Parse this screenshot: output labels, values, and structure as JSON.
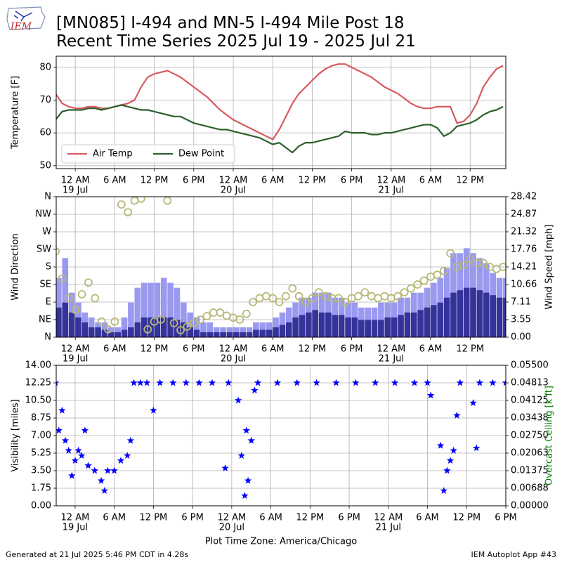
{
  "logo": "IEM",
  "title": [
    "[MN085] I-494 and MN-5 I-494 Mile Post 18",
    "Recent Time Series 2025 Jul 19 - 2025 Jul 21"
  ],
  "footer": {
    "left": "Generated at 21 Jul 2025 5:46 PM CDT in 4.28s",
    "right": "IEM Autoplot App #43"
  },
  "chart_data": [
    {
      "type": "line",
      "ylabel": "Temperature [F]",
      "grid": true,
      "legend": "lower left",
      "xlim": [
        "2025-07-18T21:06",
        "2025-07-21T17:25"
      ],
      "xticks": [
        {
          "value": "2025-07-19T00:00",
          "label": "12 AM",
          "date": "19 Jul"
        },
        {
          "value": "2025-07-19T06:00",
          "label": "6 AM"
        },
        {
          "value": "2025-07-19T12:00",
          "label": "12 PM"
        },
        {
          "value": "2025-07-19T18:00",
          "label": "6 PM"
        },
        {
          "value": "2025-07-20T00:00",
          "label": "12 AM",
          "date": "20 Jul"
        },
        {
          "value": "2025-07-20T06:00",
          "label": "6 AM"
        },
        {
          "value": "2025-07-20T12:00",
          "label": "12 PM"
        },
        {
          "value": "2025-07-20T18:00",
          "label": "6 PM"
        },
        {
          "value": "2025-07-21T00:00",
          "label": "12 AM",
          "date": "21 Jul"
        },
        {
          "value": "2025-07-21T06:00",
          "label": "6 AM"
        },
        {
          "value": "2025-07-21T12:00",
          "label": "12 PM"
        }
      ],
      "ylim": [
        49.1,
        83.4
      ],
      "yticks": [
        50,
        60,
        70,
        80
      ],
      "x": [
        "2025-07-18T21:00",
        "2025-07-18T22:00",
        "2025-07-18T23:00",
        "2025-07-19T00:00",
        "2025-07-19T01:00",
        "2025-07-19T02:00",
        "2025-07-19T03:00",
        "2025-07-19T04:00",
        "2025-07-19T05:00",
        "2025-07-19T06:00",
        "2025-07-19T07:00",
        "2025-07-19T08:00",
        "2025-07-19T09:00",
        "2025-07-19T10:00",
        "2025-07-19T11:00",
        "2025-07-19T12:00",
        "2025-07-19T13:00",
        "2025-07-19T14:00",
        "2025-07-19T15:00",
        "2025-07-19T16:00",
        "2025-07-19T17:00",
        "2025-07-19T18:00",
        "2025-07-19T19:00",
        "2025-07-19T20:00",
        "2025-07-19T21:00",
        "2025-07-19T22:00",
        "2025-07-19T23:00",
        "2025-07-20T00:00",
        "2025-07-20T01:00",
        "2025-07-20T02:00",
        "2025-07-20T03:00",
        "2025-07-20T04:00",
        "2025-07-20T05:00",
        "2025-07-20T06:00",
        "2025-07-20T07:00",
        "2025-07-20T08:00",
        "2025-07-20T09:00",
        "2025-07-20T10:00",
        "2025-07-20T11:00",
        "2025-07-20T12:00",
        "2025-07-20T13:00",
        "2025-07-20T14:00",
        "2025-07-20T15:00",
        "2025-07-20T16:00",
        "2025-07-20T17:00",
        "2025-07-20T18:00",
        "2025-07-20T19:00",
        "2025-07-20T20:00",
        "2025-07-20T21:00",
        "2025-07-20T22:00",
        "2025-07-20T23:00",
        "2025-07-21T00:00",
        "2025-07-21T01:00",
        "2025-07-21T02:00",
        "2025-07-21T03:00",
        "2025-07-21T04:00",
        "2025-07-21T05:00",
        "2025-07-21T06:00",
        "2025-07-21T07:00",
        "2025-07-21T08:00",
        "2025-07-21T09:00",
        "2025-07-21T10:00",
        "2025-07-21T11:00",
        "2025-07-21T12:00",
        "2025-07-21T13:00",
        "2025-07-21T14:00",
        "2025-07-21T15:00",
        "2025-07-21T16:00",
        "2025-07-21T17:00"
      ],
      "series": [
        {
          "name": "Air Temp",
          "color": "#d9595f",
          "values": [
            72,
            69,
            68,
            67.5,
            67.5,
            68,
            68,
            67.5,
            67.5,
            68,
            68.5,
            69,
            70,
            74,
            77,
            78,
            78.5,
            79,
            78,
            77,
            75.5,
            74,
            72.5,
            71,
            69,
            67,
            65.5,
            64,
            63,
            62,
            61,
            60,
            59,
            58,
            61,
            65,
            69,
            72,
            74,
            76,
            78,
            79.5,
            80.5,
            81,
            81,
            80,
            79,
            78,
            77,
            75.5,
            74,
            73,
            72,
            70.5,
            69,
            68,
            67.5,
            67.5,
            68,
            68,
            68,
            63,
            63.5,
            65.5,
            69,
            74,
            77,
            79.5,
            80.5
          ]
        },
        {
          "name": "Dew Point",
          "color": "#2e5f2e",
          "values": [
            64,
            66.5,
            67,
            67,
            67,
            67.5,
            67.5,
            67,
            67.5,
            68,
            68.5,
            68,
            67.5,
            67,
            67,
            66.5,
            66,
            65.5,
            65,
            65,
            64,
            63,
            62.5,
            62,
            61.5,
            61,
            61,
            60.5,
            60,
            59.5,
            59,
            58.5,
            57.5,
            56.5,
            57,
            55.5,
            54,
            56,
            57,
            57,
            57.5,
            58,
            58.5,
            59,
            60.5,
            60,
            60,
            60,
            59.5,
            59.5,
            60,
            60,
            60.5,
            61,
            61.5,
            62,
            62.5,
            62.5,
            61.5,
            59,
            60,
            62,
            62.5,
            63,
            64,
            65.5,
            66.5,
            67,
            68
          ]
        }
      ]
    },
    {
      "type": "wind",
      "ylabel": "Wind Direction",
      "y2label": "Wind Speed [mph]",
      "grid": true,
      "xlim": [
        "2025-07-18T21:06",
        "2025-07-21T17:25"
      ],
      "xticks": [
        {
          "value": "2025-07-19T00:00",
          "label": "12 AM",
          "date": "19 Jul"
        },
        {
          "value": "2025-07-19T06:00",
          "label": "6 AM"
        },
        {
          "value": "2025-07-19T12:00",
          "label": "12 PM"
        },
        {
          "value": "2025-07-19T18:00",
          "label": "6 PM"
        },
        {
          "value": "2025-07-20T00:00",
          "label": "12 AM",
          "date": "20 Jul"
        },
        {
          "value": "2025-07-20T06:00",
          "label": "6 AM"
        },
        {
          "value": "2025-07-20T12:00",
          "label": "12 PM"
        },
        {
          "value": "2025-07-20T18:00",
          "label": "6 PM"
        },
        {
          "value": "2025-07-21T00:00",
          "label": "12 AM",
          "date": "21 Jul"
        },
        {
          "value": "2025-07-21T06:00",
          "label": "6 AM"
        },
        {
          "value": "2025-07-21T12:00",
          "label": "12 PM"
        }
      ],
      "ylim": [
        0,
        360
      ],
      "yticks": [
        {
          "value": 0,
          "label": "N"
        },
        {
          "value": 45,
          "label": "NE"
        },
        {
          "value": 90,
          "label": "E"
        },
        {
          "value": 135,
          "label": "SE"
        },
        {
          "value": 180,
          "label": "S"
        },
        {
          "value": 225,
          "label": "SW"
        },
        {
          "value": 270,
          "label": "W"
        },
        {
          "value": 315,
          "label": "NW"
        },
        {
          "value": 360,
          "label": "N"
        }
      ],
      "y2lim": [
        0,
        28.42
      ],
      "y2ticks": [
        {
          "value": 0,
          "label": "0.00"
        },
        3.55,
        7.11,
        10.66,
        14.21,
        17.76,
        21.32,
        24.87,
        28.42
      ],
      "x": [
        "2025-07-18T21:00",
        "2025-07-18T22:00",
        "2025-07-18T23:00",
        "2025-07-19T00:00",
        "2025-07-19T01:00",
        "2025-07-19T02:00",
        "2025-07-19T03:00",
        "2025-07-19T04:00",
        "2025-07-19T05:00",
        "2025-07-19T06:00",
        "2025-07-19T07:00",
        "2025-07-19T08:00",
        "2025-07-19T09:00",
        "2025-07-19T10:00",
        "2025-07-19T11:00",
        "2025-07-19T12:00",
        "2025-07-19T13:00",
        "2025-07-19T14:00",
        "2025-07-19T15:00",
        "2025-07-19T16:00",
        "2025-07-19T17:00",
        "2025-07-19T18:00",
        "2025-07-19T19:00",
        "2025-07-19T20:00",
        "2025-07-19T21:00",
        "2025-07-19T22:00",
        "2025-07-19T23:00",
        "2025-07-20T00:00",
        "2025-07-20T01:00",
        "2025-07-20T02:00",
        "2025-07-20T03:00",
        "2025-07-20T04:00",
        "2025-07-20T05:00",
        "2025-07-20T06:00",
        "2025-07-20T07:00",
        "2025-07-20T08:00",
        "2025-07-20T09:00",
        "2025-07-20T10:00",
        "2025-07-20T11:00",
        "2025-07-20T12:00",
        "2025-07-20T13:00",
        "2025-07-20T14:00",
        "2025-07-20T15:00",
        "2025-07-20T16:00",
        "2025-07-20T17:00",
        "2025-07-20T18:00",
        "2025-07-20T19:00",
        "2025-07-20T20:00",
        "2025-07-20T21:00",
        "2025-07-20T22:00",
        "2025-07-20T23:00",
        "2025-07-21T00:00",
        "2025-07-21T01:00",
        "2025-07-21T02:00",
        "2025-07-21T03:00",
        "2025-07-21T04:00",
        "2025-07-21T05:00",
        "2025-07-21T06:00",
        "2025-07-21T07:00",
        "2025-07-21T08:00",
        "2025-07-21T09:00",
        "2025-07-21T10:00",
        "2025-07-21T11:00",
        "2025-07-21T12:00",
        "2025-07-21T13:00",
        "2025-07-21T14:00",
        "2025-07-21T15:00",
        "2025-07-21T16:00",
        "2025-07-21T17:00"
      ],
      "series": [
        {
          "type": "bar",
          "axis": "y2",
          "color": "#9999f0",
          "values": [
            12,
            16,
            9,
            7,
            5,
            4,
            3,
            3,
            2,
            2,
            4,
            7,
            10,
            11,
            11,
            11,
            12,
            11,
            10,
            7,
            5,
            4,
            3,
            3,
            2,
            2,
            2,
            2,
            2,
            2,
            3,
            3,
            3,
            4,
            5,
            6,
            7,
            8,
            8,
            9,
            9,
            9,
            8,
            8,
            7,
            7,
            6,
            6,
            6,
            7,
            7,
            7,
            8,
            8,
            9,
            9,
            10,
            11,
            12,
            14,
            17,
            17,
            18,
            17,
            16,
            15,
            13,
            12,
            12
          ]
        },
        {
          "type": "bar",
          "axis": "y2",
          "color": "#333399",
          "values": [
            6,
            7,
            5,
            4,
            3,
            2,
            2,
            1.5,
            1,
            1,
            1.5,
            2,
            3,
            4,
            4,
            4,
            4,
            4,
            3.5,
            3,
            2,
            1.5,
            1,
            1,
            1,
            1,
            1,
            1,
            1,
            1,
            1.5,
            1.5,
            1.5,
            2,
            2.5,
            3,
            4,
            4.5,
            5,
            5.5,
            5,
            5,
            4.5,
            4.5,
            4,
            4,
            3.5,
            3.5,
            3.5,
            3.5,
            4,
            4,
            4.5,
            5,
            5,
            5.5,
            6,
            6.5,
            7,
            8,
            9,
            9.5,
            10,
            10,
            9.5,
            9,
            8.5,
            8,
            8
          ]
        },
        {
          "type": "scatter",
          "color": "#b8b878",
          "values": [
            220,
            150,
            100,
            70,
            110,
            140,
            100,
            40,
            20,
            40,
            340,
            320,
            350,
            355,
            20,
            40,
            45,
            350,
            36,
            18,
            27,
            36,
            45,
            54,
            63,
            63,
            55,
            50,
            45,
            60,
            90,
            100,
            105,
            100,
            90,
            105,
            125,
            105,
            90,
            100,
            115,
            105,
            100,
            100,
            90,
            100,
            105,
            115,
            105,
            100,
            105,
            100,
            105,
            115,
            125,
            135,
            145,
            155,
            160,
            170,
            215,
            180,
            185,
            200,
            190,
            190,
            180,
            175,
            180
          ]
        }
      ]
    },
    {
      "type": "scatter",
      "ylabel": "Visibility [miles]",
      "y2label": "Overcast Ceiling [k ft]",
      "y2label_color": "#008000",
      "xlabel": "Plot Time Zone: America/Chicago",
      "grid": true,
      "color": "#0000ff",
      "xlim": [
        "2025-07-18T21:06",
        "2025-07-21T18:00"
      ],
      "xticks": [
        {
          "value": "2025-07-19T00:00",
          "label": "12 AM",
          "date": "19 Jul"
        },
        {
          "value": "2025-07-19T06:00",
          "label": "6 AM"
        },
        {
          "value": "2025-07-19T12:00",
          "label": "12 PM"
        },
        {
          "value": "2025-07-19T18:00",
          "label": "6 PM"
        },
        {
          "value": "2025-07-20T00:00",
          "label": "12 AM",
          "date": "20 Jul"
        },
        {
          "value": "2025-07-20T06:00",
          "label": "6 AM"
        },
        {
          "value": "2025-07-20T12:00",
          "label": "12 PM"
        },
        {
          "value": "2025-07-20T18:00",
          "label": "6 PM"
        },
        {
          "value": "2025-07-21T00:00",
          "label": "12 AM",
          "date": "21 Jul"
        },
        {
          "value": "2025-07-21T06:00",
          "label": "6 AM"
        },
        {
          "value": "2025-07-21T12:00",
          "label": "12 PM"
        },
        {
          "value": "2025-07-21T18:00",
          "label": "6 PM"
        }
      ],
      "ylim": [
        0,
        14
      ],
      "yticks": [
        {
          "value": 0,
          "label": "0.00"
        },
        1.75,
        {
          "value": 3.5,
          "label": "3.50"
        },
        5.25,
        {
          "value": 7,
          "label": "7.00"
        },
        8.75,
        {
          "value": 10.5,
          "label": "10.50"
        },
        12.25,
        {
          "value": 14,
          "label": "14.00"
        }
      ],
      "y2lim": [
        0,
        0.055
      ],
      "y2ticks": [
        {
          "value": 0,
          "label": "0.00000"
        },
        0.00688,
        0.01375,
        0.02063,
        {
          "value": 0.0275,
          "label": "0.02750"
        },
        0.03438,
        0.04125,
        0.04813,
        {
          "value": 0.055,
          "label": "0.05500"
        }
      ],
      "x": [
        "2025-07-18T21:00",
        "2025-07-18T21:30",
        "2025-07-18T22:00",
        "2025-07-18T22:30",
        "2025-07-18T23:00",
        "2025-07-18T23:30",
        "2025-07-19T00:00",
        "2025-07-19T00:30",
        "2025-07-19T01:00",
        "2025-07-19T01:30",
        "2025-07-19T02:00",
        "2025-07-19T03:00",
        "2025-07-19T04:00",
        "2025-07-19T04:30",
        "2025-07-19T05:00",
        "2025-07-19T06:00",
        "2025-07-19T07:00",
        "2025-07-19T08:00",
        "2025-07-19T08:30",
        "2025-07-19T09:00",
        "2025-07-19T10:00",
        "2025-07-19T11:00",
        "2025-07-19T12:00",
        "2025-07-19T13:00",
        "2025-07-19T15:00",
        "2025-07-19T17:00",
        "2025-07-19T19:00",
        "2025-07-19T21:00",
        "2025-07-19T23:00",
        "2025-07-19T23:30",
        "2025-07-20T01:00",
        "2025-07-20T01:30",
        "2025-07-20T02:00",
        "2025-07-20T02:15",
        "2025-07-20T02:30",
        "2025-07-20T03:00",
        "2025-07-20T03:30",
        "2025-07-20T04:00",
        "2025-07-20T07:00",
        "2025-07-20T10:00",
        "2025-07-20T13:00",
        "2025-07-20T16:00",
        "2025-07-20T19:00",
        "2025-07-20T22:00",
        "2025-07-21T01:00",
        "2025-07-21T04:00",
        "2025-07-21T06:00",
        "2025-07-21T06:30",
        "2025-07-21T08:00",
        "2025-07-21T08:30",
        "2025-07-21T09:00",
        "2025-07-21T09:30",
        "2025-07-21T10:00",
        "2025-07-21T10:30",
        "2025-07-21T11:00",
        "2025-07-21T13:00",
        "2025-07-21T13:30",
        "2025-07-21T14:00",
        "2025-07-21T16:00",
        "2025-07-21T18:00"
      ],
      "values": [
        12.25,
        7.5,
        9.5,
        6.5,
        5.5,
        3.0,
        4.5,
        5.5,
        5.0,
        7.5,
        4.0,
        3.5,
        2.5,
        1.5,
        3.5,
        3.5,
        4.5,
        5.0,
        6.5,
        12.25,
        12.25,
        12.25,
        9.5,
        12.25,
        12.25,
        12.25,
        12.25,
        12.25,
        3.75,
        12.25,
        10.5,
        5.0,
        1.0,
        7.5,
        2.5,
        6.5,
        11.5,
        12.25,
        12.25,
        12.25,
        12.25,
        12.25,
        12.25,
        12.25,
        12.25,
        12.25,
        12.25,
        11.0,
        6.0,
        1.5,
        3.5,
        4.5,
        5.5,
        9.0,
        12.25,
        10.25,
        5.75,
        12.25,
        12.25,
        12.25
      ]
    }
  ]
}
